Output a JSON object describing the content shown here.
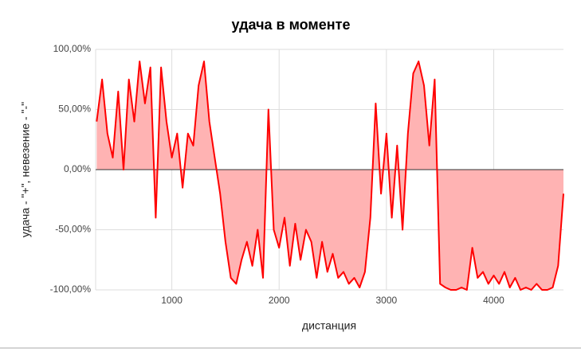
{
  "chart_data": {
    "type": "area",
    "title": "удача в моменте",
    "x_label": "дистанция",
    "y_label": "удача - \"+\", невезение - \"-\"",
    "x": [
      300,
      350,
      400,
      450,
      500,
      550,
      600,
      650,
      700,
      750,
      800,
      850,
      900,
      950,
      1000,
      1050,
      1100,
      1150,
      1200,
      1250,
      1300,
      1350,
      1400,
      1450,
      1500,
      1550,
      1600,
      1650,
      1700,
      1750,
      1800,
      1850,
      1900,
      1950,
      2000,
      2050,
      2100,
      2150,
      2200,
      2250,
      2300,
      2350,
      2400,
      2450,
      2500,
      2550,
      2600,
      2650,
      2700,
      2750,
      2800,
      2850,
      2900,
      2950,
      3000,
      3050,
      3100,
      3150,
      3200,
      3250,
      3300,
      3350,
      3400,
      3450,
      3500,
      3550,
      3600,
      3650,
      3700,
      3750,
      3800,
      3850,
      3900,
      3950,
      4000,
      4050,
      4100,
      4150,
      4200,
      4250,
      4300,
      4350,
      4400,
      4450,
      4500,
      4550,
      4600,
      4650
    ],
    "series": [
      {
        "name": "удача",
        "color": "#ff0000",
        "fill": "#ffb3b3",
        "values": [
          40,
          75,
          30,
          10,
          65,
          0,
          75,
          40,
          90,
          55,
          85,
          -40,
          85,
          40,
          10,
          30,
          -15,
          30,
          20,
          70,
          90,
          40,
          10,
          -20,
          -60,
          -90,
          -95,
          -75,
          -60,
          -80,
          -50,
          -90,
          50,
          -50,
          -65,
          -40,
          -80,
          -45,
          -75,
          -50,
          -60,
          -90,
          -60,
          -85,
          -70,
          -90,
          -85,
          -95,
          -90,
          -98,
          -85,
          -40,
          55,
          -20,
          30,
          -40,
          20,
          -50,
          30,
          80,
          90,
          70,
          20,
          75,
          -95,
          -98,
          -100,
          -100,
          -98,
          -100,
          -65,
          -90,
          -85,
          -95,
          -88,
          -95,
          -85,
          -98,
          -90,
          -100,
          -98,
          -100,
          -95,
          -100,
          -100,
          -98,
          -80,
          -20
        ]
      }
    ],
    "xlim": [
      290,
      4650
    ],
    "xticks": [
      1000,
      2000,
      3000,
      4000
    ],
    "ylim": [
      -100,
      100
    ],
    "yticks": [
      {
        "value": -100,
        "label": "-100,00%"
      },
      {
        "value": -50,
        "label": "-50,00%"
      },
      {
        "value": 0,
        "label": "0,00%"
      },
      {
        "value": 50,
        "label": "50,00%"
      },
      {
        "value": 100,
        "label": "100,00%"
      }
    ],
    "grid": true
  }
}
